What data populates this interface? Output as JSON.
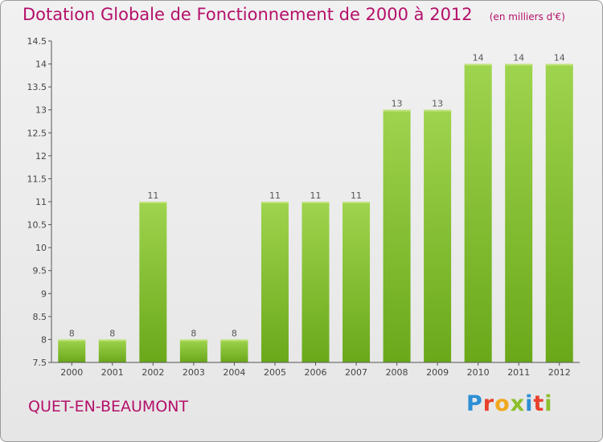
{
  "chart_data": {
    "type": "bar",
    "title": "Dotation Globale de Fonctionnement de 2000 à 2012",
    "subtitle": "(en milliers d'€)",
    "categories": [
      "2000",
      "2001",
      "2002",
      "2003",
      "2004",
      "2005",
      "2006",
      "2007",
      "2008",
      "2009",
      "2010",
      "2011",
      "2012"
    ],
    "values": [
      8,
      8,
      11,
      8,
      8,
      11,
      11,
      11,
      13,
      13,
      14,
      14,
      14
    ],
    "ylim": [
      7.5,
      14.5
    ],
    "yticks": [
      "7.5",
      "8",
      "8.5",
      "9",
      "9.5",
      "10",
      "10.5",
      "11",
      "11.5",
      "12",
      "12.5",
      "13",
      "13.5",
      "14",
      "14.5"
    ],
    "grid": false,
    "bar_color": "#7fbf2a",
    "bar_color_light": "#9ed24c"
  },
  "footer": {
    "place_name": "QUET-EN-BEAUMONT",
    "logo_letters": [
      "P",
      "r",
      "o",
      "x",
      "i",
      "t",
      "i"
    ],
    "logo_colors": [
      "#2d8fd5",
      "#e8412c",
      "#f2a81d",
      "#8cbf2a",
      "#2d8fd5",
      "#e8412c",
      "#8cbf2a"
    ]
  }
}
